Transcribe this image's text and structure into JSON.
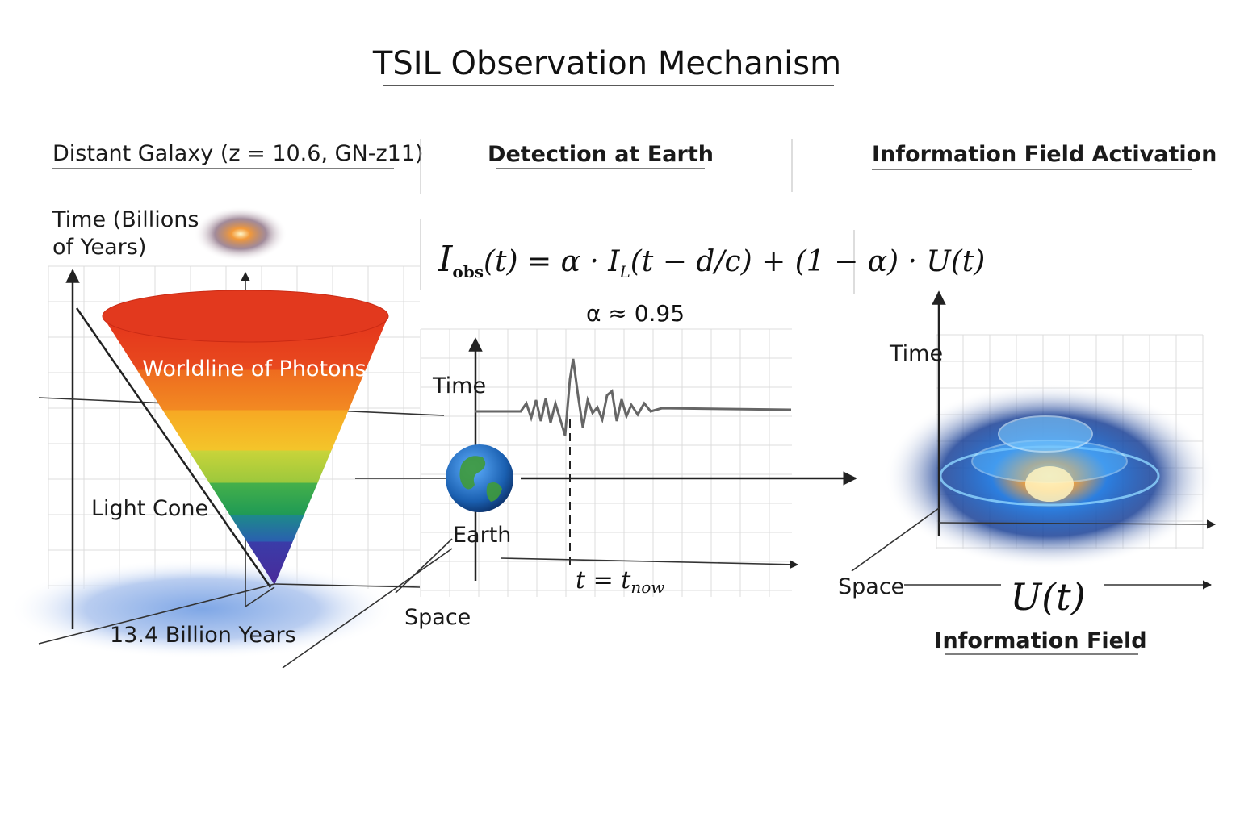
{
  "header": {
    "title": "TSIL Observation Mechanism"
  },
  "panels": [
    {
      "title": "Distant Galaxy (z = 10.6, GN-z11)"
    },
    {
      "title": "Detection at Earth"
    },
    {
      "title": "Information Field Activation"
    }
  ],
  "left": {
    "time_axis": [
      "Time (Billions",
      "of Years)"
    ],
    "cone_label": "Worldline of Photons",
    "light_cone": "Light Cone",
    "distance": "13.4 Billion Years",
    "space_axis": "Space"
  },
  "middle": {
    "equation": [
      "I",
      "obs",
      "(t) = α · I",
      "L",
      "(t − d/c) + (1 − α) · U(t)"
    ],
    "alpha": "α ≈ 0.95",
    "time_axis": "Time",
    "earth": "Earth",
    "now": [
      "t = t",
      "now"
    ]
  },
  "right": {
    "time_axis": "Time",
    "space_axis": "Space",
    "field_symbol": "U(t)",
    "field_label": "Information Field"
  }
}
